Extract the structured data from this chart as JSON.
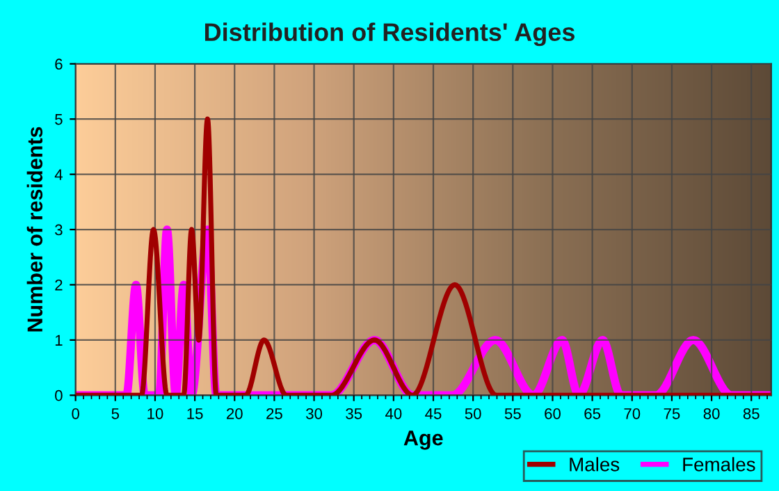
{
  "chart_data": {
    "type": "line",
    "title": "Distribution of Residents' Ages",
    "xlabel": "Age",
    "ylabel": "Number of residents",
    "xlim": [
      0,
      87.5
    ],
    "ylim": [
      0,
      6
    ],
    "xticks": [
      0,
      5,
      10,
      15,
      20,
      25,
      30,
      35,
      40,
      45,
      50,
      55,
      60,
      65,
      70,
      75,
      80,
      85
    ],
    "yticks": [
      0,
      1,
      2,
      3,
      4,
      5,
      6
    ],
    "grid": true,
    "legend": "bottom right",
    "marker": "none",
    "line_style": "solid",
    "series": [
      {
        "name": "Females",
        "color": "#ff00ff",
        "x": [
          0,
          6.4,
          7.6,
          8.7,
          10.5,
          11.5,
          12.6,
          13.6,
          14.6,
          16.6,
          17.7,
          32.2,
          37.6,
          42.4,
          47.4,
          52.8,
          57.6,
          61.2,
          63.3,
          66.3,
          68.6,
          73,
          77.7,
          82.5,
          87.5
        ],
        "values": [
          0,
          0,
          2,
          0,
          0,
          3,
          0,
          2,
          0,
          3,
          0,
          0,
          1,
          0,
          0,
          1,
          0,
          1,
          0,
          1,
          0,
          0,
          1,
          0,
          0
        ]
      },
      {
        "name": "Males",
        "color": "#a00000",
        "x": [
          0,
          8.3,
          9.8,
          11.5,
          13.6,
          14.6,
          15.5,
          16.6,
          17.7,
          21.4,
          23.7,
          26.5,
          32.2,
          37.6,
          42.4,
          47.7,
          52.9,
          87.5
        ],
        "values": [
          0,
          0,
          3,
          0,
          0,
          3,
          1,
          5,
          0,
          0,
          1,
          0,
          0,
          1,
          0,
          2,
          0,
          0
        ]
      }
    ]
  }
}
